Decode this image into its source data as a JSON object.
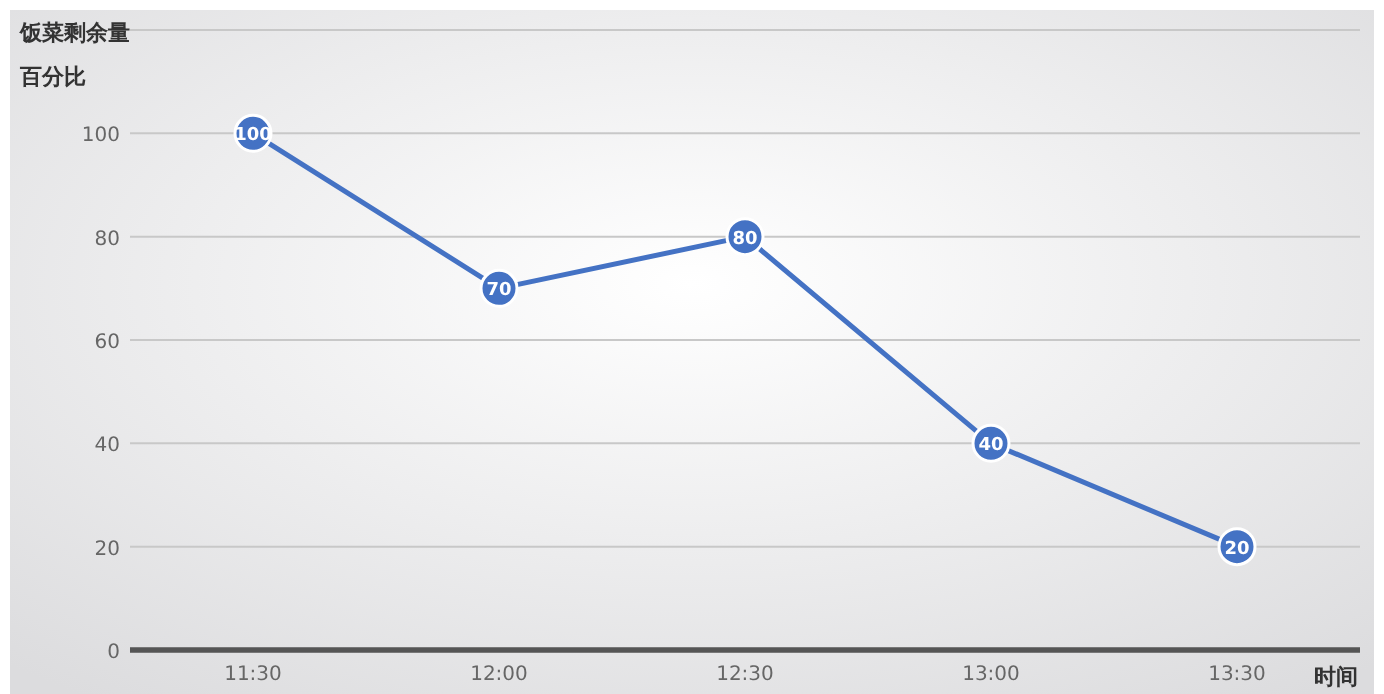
{
  "chart_data": {
    "type": "line",
    "title": "饭菜剩余量",
    "ylabel": "百分比",
    "xlabel": "时间",
    "categories": [
      "11:30",
      "12:00",
      "12:30",
      "13:00",
      "13:30"
    ],
    "series": [
      {
        "color": "#4472c4",
        "values": [
          100,
          70,
          80,
          40,
          20
        ]
      }
    ],
    "ylim": [
      0,
      120
    ],
    "yticks": [
      0,
      20,
      40,
      60,
      80,
      100,
      {
        "value": 120,
        "label": null
      }
    ],
    "grid": "y",
    "marker": "circle",
    "line_style": "solid",
    "data_labels": true
  }
}
